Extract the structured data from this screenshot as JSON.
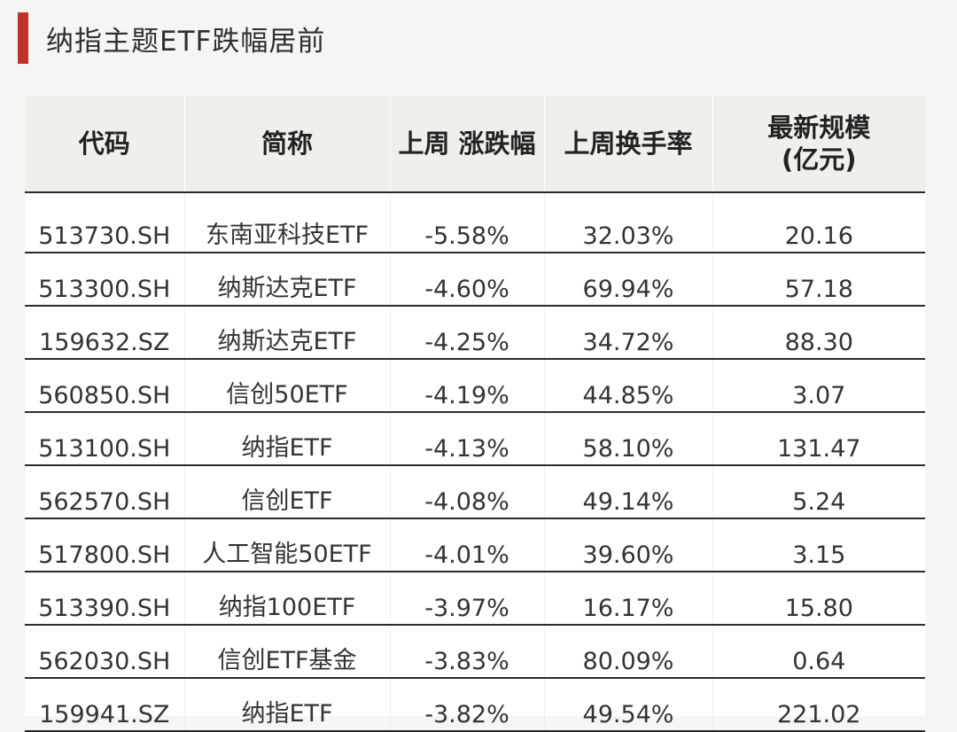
{
  "title": "纳指主题ETF跌幅居前",
  "headers": [
    "代码",
    "简称",
    "上周 涨跌幅",
    "上周换手率",
    "最新规模"
  ],
  "header_sub": "(亿元)",
  "rows": [
    {
      "code": "513730.SH",
      "name": "东南亚科技ETF",
      "change": "-5.58%",
      "turnover": "32.03%",
      "scale": "20.16"
    },
    {
      "code": "513300.SH",
      "name": "纳斯达克ETF",
      "change": "-4.60%",
      "turnover": "69.94%",
      "scale": "57.18"
    },
    {
      "code": "159632.SZ",
      "name": "纳斯达克ETF",
      "change": "-4.25%",
      "turnover": "34.72%",
      "scale": "88.30"
    },
    {
      "code": "560850.SH",
      "name": "信创50ETF",
      "change": "-4.19%",
      "turnover": "44.85%",
      "scale": "3.07"
    },
    {
      "code": "513100.SH",
      "name": "纳指ETF",
      "change": "-4.13%",
      "turnover": "58.10%",
      "scale": "131.47"
    },
    {
      "code": "562570.SH",
      "name": "信创ETF",
      "change": "-4.08%",
      "turnover": "49.14%",
      "scale": "5.24"
    },
    {
      "code": "517800.SH",
      "name": "人工智能50ETF",
      "change": "-4.01%",
      "turnover": "39.60%",
      "scale": "3.15"
    },
    {
      "code": "513390.SH",
      "name": "纳指100ETF",
      "change": "-3.97%",
      "turnover": "16.17%",
      "scale": "15.80"
    },
    {
      "code": "562030.SH",
      "name": "信创ETF基金",
      "change": "-3.83%",
      "turnover": "80.09%",
      "scale": "0.64"
    },
    {
      "code": "159941.SZ",
      "name": "纳指ETF",
      "change": "-3.82%",
      "turnover": "49.54%",
      "scale": "221.02"
    }
  ],
  "accent_color": "#c0312b"
}
